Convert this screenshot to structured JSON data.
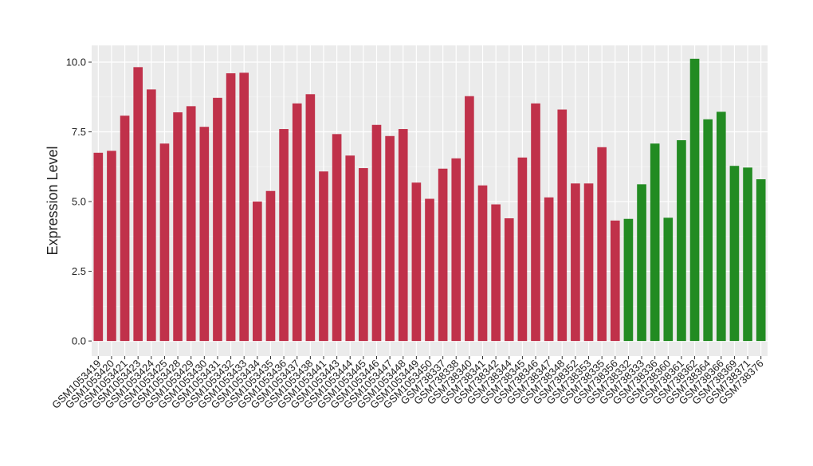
{
  "chart_data": {
    "type": "bar",
    "y_label": "Expression Level",
    "categories": [
      "GSM1053419",
      "GSM1053420",
      "GSM1053421",
      "GSM1053423",
      "GSM1053424",
      "GSM1053425",
      "GSM1053428",
      "GSM1053429",
      "GSM1053430",
      "GSM1053431",
      "GSM1053432",
      "GSM1053433",
      "GSM1053434",
      "GSM1053435",
      "GSM1053436",
      "GSM1053437",
      "GSM1053438",
      "GSM1053441",
      "GSM1053443",
      "GSM1053444",
      "GSM1053445",
      "GSM1053446",
      "GSM1053447",
      "GSM1053448",
      "GSM1053449",
      "GSM1053450",
      "GSM738337",
      "GSM738338",
      "GSM738340",
      "GSM738341",
      "GSM738342",
      "GSM738344",
      "GSM738345",
      "GSM738346",
      "GSM738347",
      "GSM738348",
      "GSM738352",
      "GSM738353",
      "GSM738335",
      "GSM738356",
      "GSM738332",
      "GSM738333",
      "GSM738336",
      "GSM738360",
      "GSM738361",
      "GSM738362",
      "GSM738364",
      "GSM738366",
      "GSM738369",
      "GSM738371",
      "GSM738376"
    ],
    "values": [
      6.75,
      6.82,
      8.08,
      9.82,
      9.02,
      7.08,
      8.2,
      8.42,
      7.68,
      8.72,
      9.6,
      9.62,
      5.0,
      5.38,
      7.6,
      8.52,
      8.85,
      6.08,
      7.42,
      6.65,
      6.2,
      7.75,
      7.35,
      7.6,
      5.68,
      5.1,
      6.18,
      6.55,
      8.78,
      5.58,
      4.9,
      4.4,
      6.58,
      8.52,
      5.15,
      8.3,
      5.65,
      5.65,
      6.95,
      4.32,
      4.38,
      5.62,
      7.08,
      4.42,
      7.2,
      10.12,
      7.95,
      8.22,
      6.28,
      6.22,
      5.8
    ],
    "colors": [
      "#c0314a",
      "#c0314a",
      "#c0314a",
      "#c0314a",
      "#c0314a",
      "#c0314a",
      "#c0314a",
      "#c0314a",
      "#c0314a",
      "#c0314a",
      "#c0314a",
      "#c0314a",
      "#c0314a",
      "#c0314a",
      "#c0314a",
      "#c0314a",
      "#c0314a",
      "#c0314a",
      "#c0314a",
      "#c0314a",
      "#c0314a",
      "#c0314a",
      "#c0314a",
      "#c0314a",
      "#c0314a",
      "#c0314a",
      "#c0314a",
      "#c0314a",
      "#c0314a",
      "#c0314a",
      "#c0314a",
      "#c0314a",
      "#c0314a",
      "#c0314a",
      "#c0314a",
      "#c0314a",
      "#c0314a",
      "#c0314a",
      "#c0314a",
      "#c0314a",
      "#228b22",
      "#228b22",
      "#228b22",
      "#228b22",
      "#228b22",
      "#228b22",
      "#228b22",
      "#228b22",
      "#228b22",
      "#228b22",
      "#228b22"
    ],
    "ylim": [
      -0.54,
      10.6
    ],
    "yticks": [
      {
        "value": 0,
        "label": "0.0"
      },
      {
        "value": 2.5,
        "label": "2.5"
      },
      {
        "value": 5,
        "label": "5.0"
      },
      {
        "value": 7.5,
        "label": "7.5"
      },
      {
        "value": 10,
        "label": "10.0"
      }
    ],
    "grid": true
  }
}
